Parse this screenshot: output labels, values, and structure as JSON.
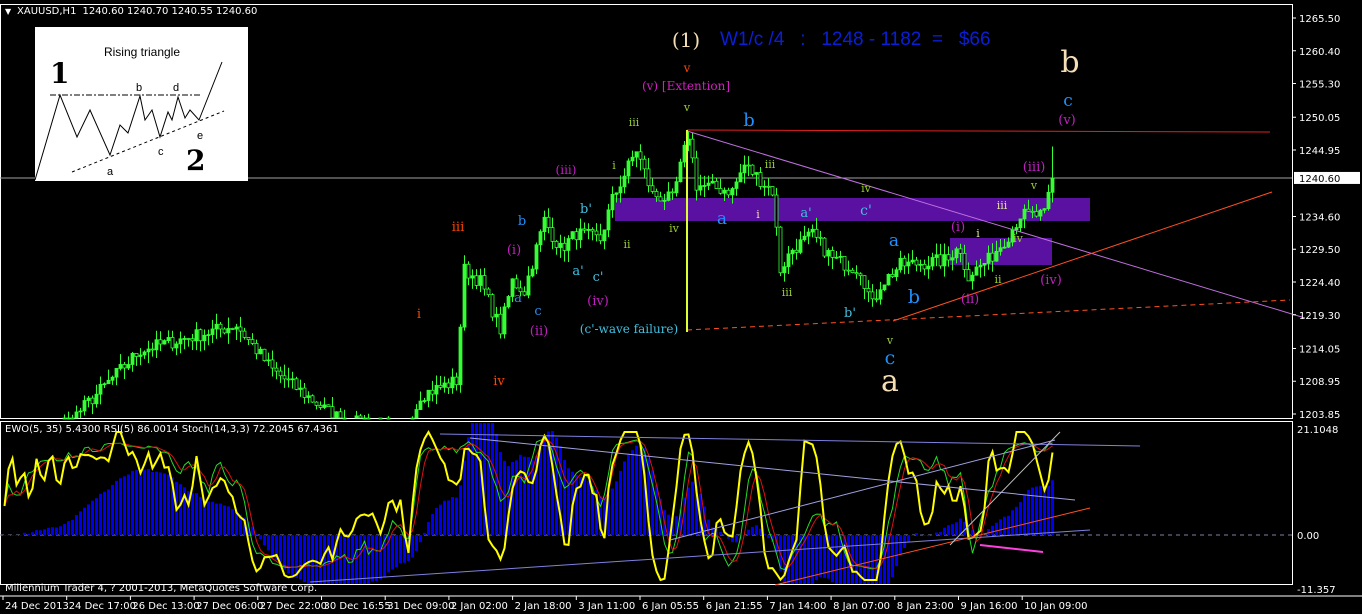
{
  "header": {
    "symbol": "XAUUSD,H1",
    "ohlc": "1240.60 1240.70 1240.55 1240.60",
    "indicator_legend": "EWO(5, 35) 5.4300  RSI(5) 86.0014  Stoch(14,3,3) 72.2045 67.4361",
    "copyright": "Millennium Trader 4, ? 2001-2013, MetaQuotes Software Corp."
  },
  "inset": {
    "title": "Rising triangle",
    "labels": [
      "1",
      "2",
      "a",
      "b",
      "c",
      "d",
      "e"
    ]
  },
  "colors": {
    "background": "#000000",
    "candle": "#33ff33",
    "ewo_histogram": "#0000ee",
    "rsi": "#ffff00",
    "stoch_main": "#22dd22",
    "stoch_signal": "#dd1111",
    "zone": "#5a10a0"
  },
  "chart_data": {
    "type": "candlestick",
    "symbol": "XAUUSD",
    "timeframe": "H1",
    "current_price": "1240.60",
    "price_ticks": [
      "1265.50",
      "1260.40",
      "1255.30",
      "1250.05",
      "1244.95",
      "1234.60",
      "1229.50",
      "1224.40",
      "1219.30",
      "1214.05",
      "1208.95",
      "1203.85"
    ],
    "price_range": [
      1203.85,
      1265.5
    ],
    "indicator_ticks": [
      "21.1048",
      "0.00",
      "-11.357"
    ],
    "indicator_range": [
      -11.357,
      21.1048
    ],
    "time_ticks": [
      "24 Dec 2013",
      "24 Dec 17:00",
      "26 Dec 13:00",
      "27 Dec 06:00",
      "27 Dec 22:00",
      "30 Dec 16:55",
      "31 Dec 09:00",
      "2 Jan 02:00",
      "2 Jan 18:00",
      "3 Jan 11:00",
      "6 Jan 05:55",
      "6 Jan 21:55",
      "7 Jan 14:00",
      "8 Jan 07:00",
      "8 Jan 23:00",
      "9 Jan 16:00",
      "10 Jan 09:00"
    ],
    "price_path": [
      [
        0,
        1198
      ],
      [
        12,
        1200
      ],
      [
        34,
        1213.8
      ],
      [
        58,
        1217.7
      ],
      [
        67,
        1210.7
      ],
      [
        82,
        1203.7
      ],
      [
        100,
        1200
      ],
      [
        104,
        1206.8
      ],
      [
        113,
        1209
      ],
      [
        115,
        1226.3
      ],
      [
        119,
        1224.5
      ],
      [
        124,
        1217
      ],
      [
        127,
        1224.5
      ],
      [
        130,
        1223
      ],
      [
        135,
        1234
      ],
      [
        139,
        1229.5
      ],
      [
        143,
        1232
      ],
      [
        149,
        1231
      ],
      [
        152,
        1237.2
      ],
      [
        158,
        1245
      ],
      [
        162,
        1238
      ],
      [
        167,
        1237.2
      ],
      [
        171,
        1247.3
      ],
      [
        173,
        1239.5
      ],
      [
        182,
        1238.6
      ],
      [
        185,
        1242.6
      ],
      [
        192,
        1238.6
      ],
      [
        194,
        1226.3
      ],
      [
        197,
        1229.5
      ],
      [
        202,
        1231.7
      ],
      [
        207,
        1228
      ],
      [
        214,
        1226.3
      ],
      [
        217,
        1220.8
      ],
      [
        219,
        1224
      ],
      [
        224,
        1227
      ],
      [
        236,
        1227.8
      ],
      [
        238,
        1230.2
      ],
      [
        241,
        1225.5
      ],
      [
        246,
        1227.8
      ],
      [
        251,
        1231.7
      ],
      [
        254,
        1234.8
      ],
      [
        260,
        1234.8
      ],
      [
        262,
        1240.6
      ]
    ],
    "annotations": [
      {
        "text": "(1)",
        "color": "#f5deb3"
      },
      {
        "text": "W1/c /4   :   1248 - 1182  =   $66",
        "color": "#0a1ed8"
      },
      {
        "text": "b",
        "color": "#f5deb3"
      },
      {
        "text": "v",
        "color": "#ff4500"
      },
      {
        "text": "(v) [Extention]",
        "color": "#d020c0"
      },
      {
        "text": "v",
        "color": "#9acd32"
      },
      {
        "text": "iii",
        "color": "#9acd32"
      },
      {
        "text": "b",
        "color": "#1e90ff"
      },
      {
        "text": "c",
        "color": "#1e90ff"
      },
      {
        "text": "(v)",
        "color": "#c020c0"
      },
      {
        "text": "(iii)",
        "color": "#c020c0"
      },
      {
        "text": "i",
        "color": "#9acd32"
      },
      {
        "text": "iii",
        "color": "#9acd32"
      },
      {
        "text": "iv",
        "color": "#9acd32"
      },
      {
        "text": "b'",
        "color": "#40c0e0"
      },
      {
        "text": "b",
        "color": "#1e90ff"
      },
      {
        "text": "iii",
        "color": "#ff4500"
      },
      {
        "text": "a",
        "color": "#1e90ff"
      },
      {
        "text": "i",
        "color": "#f5deb3"
      },
      {
        "text": "a'",
        "color": "#40c0e0"
      },
      {
        "text": "c'",
        "color": "#40c0e0"
      },
      {
        "text": "iv",
        "color": "#9acd32"
      },
      {
        "text": "ii",
        "color": "#9acd32"
      },
      {
        "text": "(i)",
        "color": "#c020c0"
      },
      {
        "text": "a",
        "color": "#1e90ff"
      },
      {
        "text": "(i)",
        "color": "#c020c0"
      },
      {
        "text": "iii",
        "color": "#e0e0a0"
      },
      {
        "text": "(iii)",
        "color": "#c020c0"
      },
      {
        "text": "v",
        "color": "#9acd32"
      },
      {
        "text": "i",
        "color": "#e0e0a0"
      },
      {
        "text": "iv",
        "color": "#9acd32"
      },
      {
        "text": "a'",
        "color": "#40c0e0"
      },
      {
        "text": "a",
        "color": "#1e90ff"
      },
      {
        "text": "c'",
        "color": "#40c0e0"
      },
      {
        "text": "iii",
        "color": "#9acd32"
      },
      {
        "text": "(iv)",
        "color": "#c020c0"
      },
      {
        "text": "ii",
        "color": "#9acd32"
      },
      {
        "text": "(iv)",
        "color": "#c020c0"
      },
      {
        "text": "b",
        "color": "#1e90ff"
      },
      {
        "text": "(ii)",
        "color": "#c020c0"
      },
      {
        "text": "c",
        "color": "#1e90ff"
      },
      {
        "text": "i",
        "color": "#ff4500"
      },
      {
        "text": "b'",
        "color": "#40c0e0"
      },
      {
        "text": "(ii)",
        "color": "#c020c0"
      },
      {
        "text": "(c'-wave failure)",
        "color": "#40c0e0"
      },
      {
        "text": "v",
        "color": "#9acd32"
      },
      {
        "text": "c",
        "color": "#1e90ff"
      },
      {
        "text": "a",
        "color": "#f5deb3"
      },
      {
        "text": "iv",
        "color": "#ff4500"
      }
    ]
  }
}
